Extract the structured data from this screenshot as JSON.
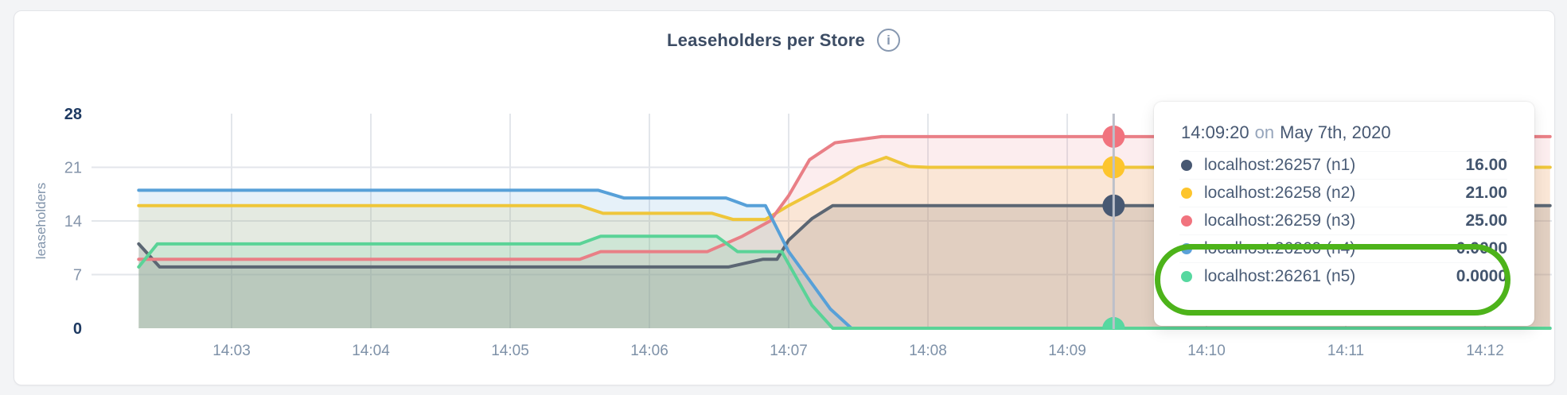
{
  "header": {
    "title": "Leaseholders per Store",
    "info_icon": "i"
  },
  "tooltip": {
    "time": "14:09:20",
    "connector": "on",
    "date": "May 7th, 2020",
    "rows": [
      {
        "label": "localhost:26257 (n1)",
        "value": "16.00",
        "color": "#475872",
        "highlighted": false
      },
      {
        "label": "localhost:26258 (n2)",
        "value": "21.00",
        "color": "#fdc52d",
        "highlighted": false
      },
      {
        "label": "localhost:26259 (n3)",
        "value": "25.00",
        "color": "#f1737e",
        "highlighted": false
      },
      {
        "label": "localhost:26260 (n4)",
        "value": "0.0000",
        "color": "#5ba1d8",
        "highlighted": true
      },
      {
        "label": "localhost:26261 (n5)",
        "value": "0.0000",
        "color": "#57d8a0",
        "highlighted": true
      }
    ],
    "annotation_color": "#4db31a"
  },
  "chart_data": {
    "type": "area",
    "title": "Leaseholders per Store",
    "xlabel": "",
    "ylabel": "leaseholders",
    "ylim": [
      0,
      28
    ],
    "yticks": [
      {
        "value": 0,
        "strong": true,
        "gridline": false
      },
      {
        "value": 7,
        "strong": false,
        "gridline": true
      },
      {
        "value": 14,
        "strong": false,
        "gridline": true
      },
      {
        "value": 21,
        "strong": false,
        "gridline": true
      },
      {
        "value": 28,
        "strong": true,
        "gridline": false
      }
    ],
    "xticks": [
      "14:03",
      "14:04",
      "14:05",
      "14:06",
      "14:07",
      "14:08",
      "14:09",
      "14:10",
      "14:11",
      "14:12"
    ],
    "x_start": "14:02:20",
    "x_end": "14:12:28",
    "legend_position": "tooltip",
    "grid": true,
    "series": [
      {
        "id": "n1",
        "name": "localhost:26257 (n1)",
        "line_color": "#5b6673",
        "dot_color": "#475872",
        "fill_color": "rgba(90,102,115,0.20)",
        "points": [
          [
            "14:02:20",
            11
          ],
          [
            "14:02:29",
            8
          ],
          [
            "14:06:34",
            8
          ],
          [
            "14:06:49",
            9
          ],
          [
            "14:06:55",
            9
          ],
          [
            "14:07:00",
            11.5
          ],
          [
            "14:07:10",
            14.3
          ],
          [
            "14:07:19",
            16
          ],
          [
            "14:12:28",
            16
          ]
        ]
      },
      {
        "id": "n2",
        "name": "localhost:26258 (n2)",
        "line_color": "#efc63a",
        "dot_color": "#fdc52d",
        "fill_color": "rgba(239,198,58,0.14)",
        "points": [
          [
            "14:02:20",
            16
          ],
          [
            "14:05:30",
            16
          ],
          [
            "14:05:40",
            15
          ],
          [
            "14:06:27",
            15
          ],
          [
            "14:06:36",
            14.2
          ],
          [
            "14:06:50",
            14.2
          ],
          [
            "14:07:00",
            16
          ],
          [
            "14:07:10",
            17.6
          ],
          [
            "14:07:20",
            19.2
          ],
          [
            "14:07:30",
            21
          ],
          [
            "14:07:42",
            22.3
          ],
          [
            "14:07:52",
            21.1
          ],
          [
            "14:08:00",
            21
          ],
          [
            "14:12:28",
            21
          ]
        ]
      },
      {
        "id": "n3",
        "name": "localhost:26259 (n3)",
        "line_color": "#e97f86",
        "dot_color": "#f1737e",
        "fill_color": "rgba(233,127,134,0.14)",
        "points": [
          [
            "14:02:20",
            9
          ],
          [
            "14:05:30",
            9
          ],
          [
            "14:05:39",
            10
          ],
          [
            "14:06:25",
            10
          ],
          [
            "14:06:40",
            12
          ],
          [
            "14:06:52",
            14
          ],
          [
            "14:07:00",
            17.3
          ],
          [
            "14:07:09",
            22
          ],
          [
            "14:07:20",
            24.2
          ],
          [
            "14:07:40",
            25
          ],
          [
            "14:12:28",
            25
          ]
        ]
      },
      {
        "id": "n4",
        "name": "localhost:26260 (n4)",
        "line_color": "#57a0d8",
        "dot_color": "#5ba1d8",
        "fill_color": "rgba(87,160,216,0.15)",
        "points": [
          [
            "14:02:20",
            18
          ],
          [
            "14:05:38",
            18
          ],
          [
            "14:05:49",
            17
          ],
          [
            "14:06:33",
            17
          ],
          [
            "14:06:42",
            16
          ],
          [
            "14:06:50",
            16
          ],
          [
            "14:07:00",
            10
          ],
          [
            "14:07:18",
            2.5
          ],
          [
            "14:07:27",
            0
          ],
          [
            "14:12:28",
            0
          ]
        ]
      },
      {
        "id": "n5",
        "name": "localhost:26261 (n5)",
        "line_color": "#5ad397",
        "dot_color": "#57d8a0",
        "fill_color": "rgba(90,211,151,0.15)",
        "points": [
          [
            "14:02:20",
            8
          ],
          [
            "14:02:28",
            11
          ],
          [
            "14:05:30",
            11
          ],
          [
            "14:05:39",
            12
          ],
          [
            "14:06:29",
            12
          ],
          [
            "14:06:38",
            10
          ],
          [
            "14:06:57",
            10
          ],
          [
            "14:07:10",
            3
          ],
          [
            "14:07:19",
            0
          ],
          [
            "14:12:28",
            0
          ]
        ]
      }
    ],
    "hover": {
      "time": "14:09:20",
      "values": [
        16,
        21,
        25,
        0,
        0
      ]
    }
  }
}
